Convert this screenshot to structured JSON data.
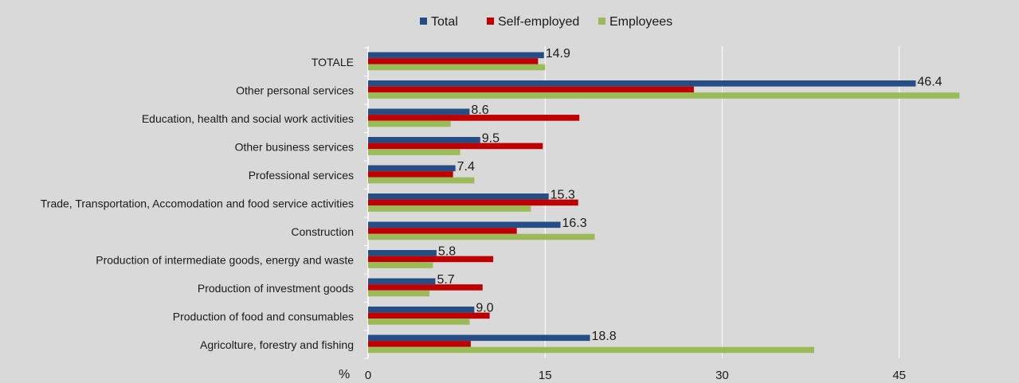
{
  "chart_data": {
    "type": "bar",
    "orientation": "horizontal",
    "categories": [
      "TOTALE",
      "Other personal services",
      "Education, health and social work activities",
      "Other business services",
      "Professional services",
      "Trade, Transportation, Accomodation and food service activities",
      "Construction",
      "Production of intermediate goods, energy and waste",
      "Production of investment goods",
      "Production of food and consumables",
      "Agricolture, forestry and fishing"
    ],
    "series": [
      {
        "name": "Total",
        "color": "#254e86",
        "values": [
          14.9,
          46.4,
          8.6,
          9.5,
          7.4,
          15.3,
          16.3,
          5.8,
          5.7,
          9.0,
          18.8
        ],
        "data_labels": [
          "14.9",
          "46.4",
          "8.6",
          "9.5",
          "7.4",
          "15.3",
          "16.3",
          "5.8",
          "5.7",
          "9.0",
          "18.8"
        ]
      },
      {
        "name": "Self-employed",
        "color": "#c00000",
        "values": [
          14.4,
          27.6,
          17.9,
          14.8,
          7.2,
          17.8,
          12.6,
          10.6,
          9.7,
          10.3,
          8.7
        ]
      },
      {
        "name": "Employees",
        "color": "#9bbb59",
        "values": [
          15.0,
          50.1,
          7.0,
          7.8,
          9.0,
          13.8,
          19.2,
          5.5,
          5.2,
          8.6,
          37.8
        ]
      }
    ],
    "x_ticks": [
      "0",
      "15",
      "30",
      "45"
    ],
    "x_tick_values": [
      0,
      15,
      30,
      45
    ],
    "xlim": [
      0,
      54
    ],
    "unit_label": "%",
    "legend_position": "top-center",
    "grid": "vertical"
  }
}
